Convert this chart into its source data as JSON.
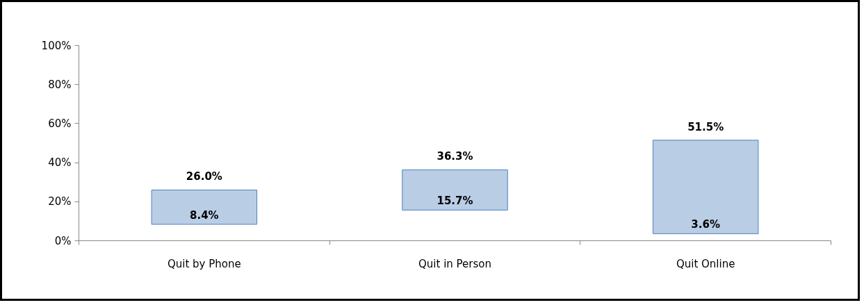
{
  "chart_data": {
    "type": "bar",
    "categories": [
      "Quit by Phone",
      "Quit in Person",
      "Quit Online"
    ],
    "base": [
      8.4,
      15.7,
      3.6
    ],
    "values": [
      17.6,
      20.6,
      47.9
    ],
    "value_labels": [
      "26.0%",
      "36.3%",
      "51.5%"
    ],
    "annotations": [
      {
        "text": "8.4%",
        "x": "Quit by Phone",
        "y": 8.4
      },
      {
        "text": "15.7%",
        "x": "Quit in Person",
        "y": 15.7
      },
      {
        "text": "3.6%",
        "x": "Quit Online",
        "y": 3.6
      }
    ],
    "color": "#b9cde5",
    "ylim": [
      0,
      100
    ],
    "yticks": [
      {
        "value": 0,
        "label": "0%"
      },
      {
        "value": 20,
        "label": "20%"
      },
      {
        "value": 40,
        "label": "40%"
      },
      {
        "value": 60,
        "label": "60%"
      },
      {
        "value": 80,
        "label": "80%"
      },
      {
        "value": 100,
        "label": "100%"
      }
    ],
    "grid": false
  }
}
